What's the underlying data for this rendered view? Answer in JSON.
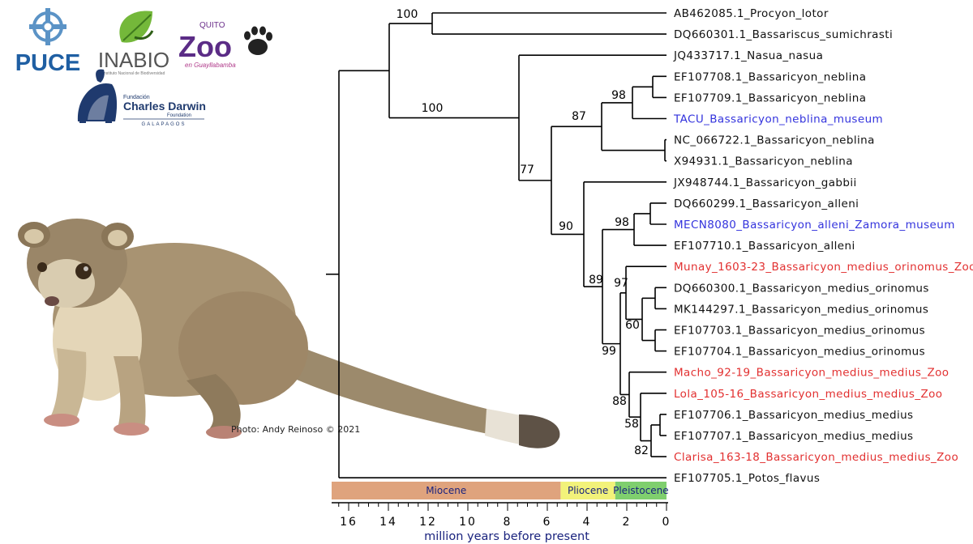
{
  "logos": {
    "puce": "PUCE",
    "inabio": "INABIO",
    "inabio_sub": "Instituto Nacional de Biodiversidad",
    "zoo_quito": "QUITO",
    "zoo_main": "Zoo",
    "zoo_sub": "en Guayllabamba",
    "darwin_top": "Fundación",
    "darwin_main": "Charles Darwin",
    "darwin_foundation": "Foundation",
    "darwin_bottom": "GALAPAGOS"
  },
  "photo_credit": "Photo: Andy Reinoso © 2021",
  "colors": {
    "museum": "#3333dd",
    "zoo": "#e23030",
    "default": "#111111",
    "miocene": "#dfa37d",
    "pliocene": "#f2f27a",
    "pleistocene": "#7fcf6e"
  },
  "tips": [
    {
      "label": "AB462085.1_Procyon_lotor",
      "group": "default"
    },
    {
      "label": "DQ660301.1_Bassariscus_sumichrasti",
      "group": "default"
    },
    {
      "label": "JQ433717.1_Nasua_nasua",
      "group": "default"
    },
    {
      "label": "EF107708.1_Bassaricyon_neblina",
      "group": "default"
    },
    {
      "label": "EF107709.1_Bassaricyon_neblina",
      "group": "default"
    },
    {
      "label": "TACU_Bassaricyon_neblina_museum",
      "group": "museum"
    },
    {
      "label": "NC_066722.1_Bassaricyon_neblina",
      "group": "default"
    },
    {
      "label": "X94931.1_Bassaricyon_neblina",
      "group": "default"
    },
    {
      "label": "JX948744.1_Bassaricyon_gabbii",
      "group": "default"
    },
    {
      "label": "DQ660299.1_Bassaricyon_alleni",
      "group": "default"
    },
    {
      "label": "MECN8080_Bassaricyon_alleni_Zamora_museum",
      "group": "museum"
    },
    {
      "label": "EF107710.1_Bassaricyon_alleni",
      "group": "default"
    },
    {
      "label": "Munay_1603-23_Bassaricyon_medius_orinomus_Zoo",
      "group": "zoo"
    },
    {
      "label": "DQ660300.1_Bassaricyon_medius_orinomus",
      "group": "default"
    },
    {
      "label": "MK144297.1_Bassaricyon_medius_orinomus",
      "group": "default"
    },
    {
      "label": "EF107703.1_Bassaricyon_medius_orinomus",
      "group": "default"
    },
    {
      "label": "EF107704.1_Bassaricyon_medius_orinomus",
      "group": "default"
    },
    {
      "label": "Macho_92-19_Bassaricyon_medius_medius_Zoo",
      "group": "zoo"
    },
    {
      "label": "Lola_105-16_Bassaricyon_medius_medius_Zoo",
      "group": "zoo"
    },
    {
      "label": "EF107706.1_Bassaricyon_medius_medius",
      "group": "default"
    },
    {
      "label": "EF107707.1_Bassaricyon_medius_medius",
      "group": "default"
    },
    {
      "label": "Clarisa_163-18_Bassaricyon_medius_medius_Zoo",
      "group": "zoo"
    },
    {
      "label": "EF107705.1_Potos_flavus",
      "group": "default"
    }
  ],
  "bootstrap": [
    "100",
    "100",
    "77",
    "87",
    "98",
    "90",
    "98",
    "89",
    "97",
    "99",
    "60",
    "88",
    "58",
    "82"
  ],
  "epochs": [
    {
      "name": "Miocene",
      "from": 17.3,
      "to": 5.33,
      "color": "miocene"
    },
    {
      "name": "Pliocene",
      "from": 5.33,
      "to": 2.58,
      "color": "pliocene"
    },
    {
      "name": "Pleistocene",
      "from": 2.58,
      "to": 0,
      "color": "pleistocene"
    }
  ],
  "axis": {
    "ticks": [
      "16",
      "14",
      "12",
      "10",
      "8",
      "6",
      "4",
      "2",
      "0"
    ],
    "tick_values": [
      16,
      14,
      12,
      10,
      8,
      6,
      4,
      2,
      0
    ],
    "label": "million years before present"
  }
}
